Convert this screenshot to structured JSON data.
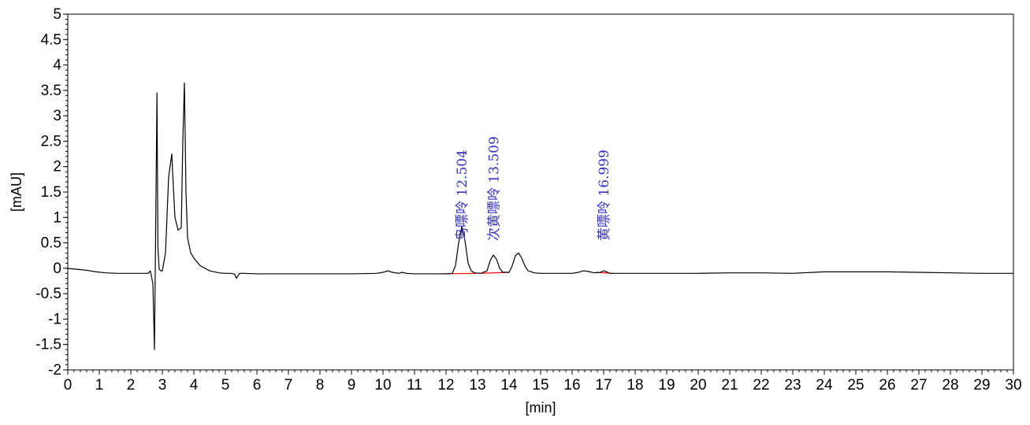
{
  "chart_data": {
    "type": "line",
    "xlabel": "[min]",
    "ylabel": "[mAU]",
    "xlim": [
      0,
      30
    ],
    "ylim": [
      -2,
      5
    ],
    "x_ticks": [
      "0",
      "1",
      "2",
      "3",
      "4",
      "5",
      "6",
      "7",
      "8",
      "9",
      "10",
      "11",
      "12",
      "13",
      "14",
      "15",
      "16",
      "17",
      "18",
      "19",
      "20",
      "21",
      "22",
      "23",
      "24",
      "25",
      "26",
      "27",
      "28",
      "29",
      "30"
    ],
    "y_ticks": [
      "5",
      "4.5",
      "4",
      "3.5",
      "3",
      "2.5",
      "2",
      "1.5",
      "1",
      "0.5",
      "0",
      "-0.5",
      "-1",
      "-1.5",
      "-2"
    ],
    "grid": false,
    "colors": {
      "trace": "#000000",
      "baseline": "#ff0000",
      "annotation": "#3333cc"
    },
    "series": [
      {
        "x": [
          0,
          0.1,
          0.3,
          0.6,
          0.9,
          1.2,
          1.6,
          2.0,
          2.3,
          2.55,
          2.62,
          2.7,
          2.75,
          2.8,
          2.83,
          2.86,
          2.9,
          2.95,
          3.0,
          3.1,
          3.2,
          3.3,
          3.35,
          3.4,
          3.5,
          3.6,
          3.65,
          3.7,
          3.75,
          3.8,
          3.9,
          4.0,
          4.2,
          4.5,
          4.8,
          5.0,
          5.2,
          5.3,
          5.35,
          5.45,
          5.6,
          6.0,
          7.0,
          8.0,
          9.0,
          9.8,
          10.0,
          10.15,
          10.3,
          10.5,
          10.6,
          10.75,
          11.0,
          11.5,
          12.0,
          12.2,
          12.3,
          12.4,
          12.5,
          12.6,
          12.7,
          12.8,
          12.9,
          13.1,
          13.3,
          13.4,
          13.5,
          13.6,
          13.7,
          13.8,
          14.0,
          14.1,
          14.2,
          14.3,
          14.4,
          14.5,
          14.6,
          14.8,
          15.0,
          15.5,
          16.0,
          16.2,
          16.35,
          16.5,
          16.7,
          16.9,
          17.0,
          17.1,
          17.2,
          17.5,
          18.0,
          19.0,
          20.0,
          21.0,
          22.0,
          23.0,
          24.0,
          25.0,
          26.0,
          27.0,
          28.0,
          29.0,
          30.0
        ],
        "y": [
          0.0,
          -0.01,
          -0.02,
          -0.04,
          -0.07,
          -0.09,
          -0.1,
          -0.1,
          -0.1,
          -0.1,
          -0.05,
          -0.3,
          -1.6,
          1.5,
          3.45,
          0.4,
          -0.02,
          -0.05,
          -0.05,
          0.3,
          1.8,
          2.25,
          1.6,
          1.0,
          0.75,
          0.8,
          2.5,
          3.65,
          1.5,
          0.6,
          0.3,
          0.2,
          0.05,
          -0.05,
          -0.09,
          -0.1,
          -0.1,
          -0.12,
          -0.2,
          -0.1,
          -0.1,
          -0.11,
          -0.11,
          -0.11,
          -0.11,
          -0.1,
          -0.08,
          -0.05,
          -0.08,
          -0.1,
          -0.08,
          -0.1,
          -0.11,
          -0.11,
          -0.11,
          -0.1,
          0.05,
          0.5,
          0.82,
          0.55,
          0.1,
          -0.05,
          -0.09,
          -0.1,
          -0.05,
          0.15,
          0.26,
          0.18,
          0.0,
          -0.08,
          -0.08,
          0.05,
          0.25,
          0.3,
          0.2,
          0.05,
          -0.05,
          -0.09,
          -0.1,
          -0.1,
          -0.1,
          -0.08,
          -0.05,
          -0.06,
          -0.09,
          -0.08,
          -0.05,
          -0.07,
          -0.1,
          -0.1,
          -0.1,
          -0.1,
          -0.1,
          -0.09,
          -0.09,
          -0.1,
          -0.07,
          -0.07,
          -0.07,
          -0.08,
          -0.09,
          -0.1,
          -0.1
        ]
      }
    ],
    "baselines": [
      {
        "x": [
          11.8,
          13.0
        ],
        "y": [
          -0.11,
          -0.1
        ]
      },
      {
        "x": [
          13.05,
          14.0
        ],
        "y": [
          -0.1,
          -0.08
        ]
      },
      {
        "x": [
          16.75,
          17.3
        ],
        "y": [
          -0.08,
          -0.1
        ]
      }
    ],
    "annotations": [
      {
        "text": "鸟嘌呤 12.504",
        "x": 12.504
      },
      {
        "text": "次黄嘌呤 13.509",
        "x": 13.509
      },
      {
        "text": "黄嘌呤 16.999",
        "x": 16.999
      }
    ]
  }
}
